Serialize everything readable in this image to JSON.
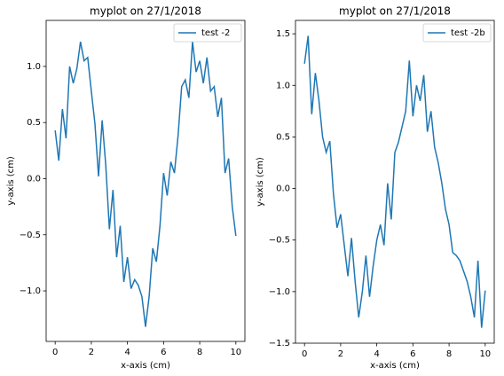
{
  "chart_data": [
    {
      "type": "line",
      "title": "myplot on 27/1/2018",
      "xlabel": "x-axis (cm)",
      "ylabel": "y-axis (cm)",
      "x": [
        0,
        0.2,
        0.4,
        0.6,
        0.8,
        1.0,
        1.2,
        1.4,
        1.6,
        1.8,
        2.0,
        2.2,
        2.4,
        2.6,
        2.8,
        3.0,
        3.2,
        3.4,
        3.6,
        3.8,
        4.0,
        4.2,
        4.4,
        4.6,
        4.8,
        5.0,
        5.2,
        5.4,
        5.6,
        5.8,
        6.0,
        6.2,
        6.4,
        6.6,
        6.8,
        7.0,
        7.2,
        7.4,
        7.6,
        7.8,
        8.0,
        8.2,
        8.4,
        8.6,
        8.8,
        9.0,
        9.2,
        9.4,
        9.6,
        9.8,
        10.0
      ],
      "series": [
        {
          "name": "test -2",
          "color": "#1f77b4",
          "values": [
            0.43,
            0.16,
            0.62,
            0.36,
            1.0,
            0.85,
            0.98,
            1.22,
            1.05,
            1.08,
            0.78,
            0.49,
            0.02,
            0.52,
            0.12,
            -0.45,
            -0.1,
            -0.7,
            -0.42,
            -0.92,
            -0.7,
            -0.98,
            -0.9,
            -0.95,
            -1.05,
            -1.32,
            -1.05,
            -0.62,
            -0.74,
            -0.42,
            0.05,
            -0.15,
            0.15,
            0.05,
            0.38,
            0.82,
            0.88,
            0.72,
            1.22,
            0.95,
            1.05,
            0.85,
            1.08,
            0.78,
            0.82,
            0.55,
            0.72,
            0.05,
            0.18,
            -0.25,
            -0.51
          ]
        }
      ],
      "xlim": [
        -0.5,
        10.5
      ],
      "xticks": [
        0,
        2,
        4,
        6,
        8,
        10
      ],
      "ylim": [
        -1.45,
        1.41
      ],
      "yticks": [
        {
          "value": -1.0,
          "label": "−1.0"
        },
        {
          "value": -0.5,
          "label": "−0.5"
        },
        {
          "value": 0.0,
          "label": "0.0"
        },
        {
          "value": 0.5,
          "label": "0.5"
        },
        {
          "value": 1.0,
          "label": "1.0"
        }
      ],
      "legend": "upper right"
    },
    {
      "type": "line",
      "title": "myplot on 27/1/2018",
      "xlabel": "x-axis (cm)",
      "ylabel": "y-axis (cm)",
      "x": [
        0,
        0.2,
        0.4,
        0.6,
        0.8,
        1.0,
        1.2,
        1.4,
        1.6,
        1.8,
        2.0,
        2.2,
        2.4,
        2.6,
        2.8,
        3.0,
        3.2,
        3.4,
        3.6,
        3.8,
        4.0,
        4.2,
        4.4,
        4.6,
        4.8,
        5.0,
        5.2,
        5.4,
        5.6,
        5.8,
        6.0,
        6.2,
        6.4,
        6.6,
        6.8,
        7.0,
        7.2,
        7.4,
        7.6,
        7.8,
        8.0,
        8.2,
        8.4,
        8.6,
        8.8,
        9.0,
        9.2,
        9.4,
        9.6,
        9.8,
        10.0
      ],
      "series": [
        {
          "name": "test -2b",
          "color": "#1f77b4",
          "values": [
            1.21,
            1.48,
            0.72,
            1.12,
            0.85,
            0.5,
            0.35,
            0.46,
            -0.05,
            -0.38,
            -0.25,
            -0.55,
            -0.85,
            -0.48,
            -0.9,
            -1.25,
            -1.0,
            -0.65,
            -1.05,
            -0.75,
            -0.5,
            -0.35,
            -0.55,
            0.05,
            -0.3,
            0.35,
            0.45,
            0.6,
            0.75,
            1.24,
            0.7,
            1.0,
            0.85,
            1.1,
            0.55,
            0.75,
            0.4,
            0.25,
            0.05,
            -0.2,
            -0.35,
            -0.62,
            -0.65,
            -0.7,
            -0.8,
            -0.9,
            -1.05,
            -1.25,
            -0.7,
            -1.35,
            -0.99
          ]
        }
      ],
      "xlim": [
        -0.5,
        10.5
      ],
      "xticks": [
        0,
        2,
        4,
        6,
        8,
        10
      ],
      "ylim": [
        -1.5,
        1.63
      ],
      "yticks": [
        {
          "value": -1.5,
          "label": "−1.5"
        },
        {
          "value": -1.0,
          "label": "−1.0"
        },
        {
          "value": -0.5,
          "label": "−0.5"
        },
        {
          "value": 0.0,
          "label": "0.0"
        },
        {
          "value": 0.5,
          "label": "0.5"
        },
        {
          "value": 1.0,
          "label": "1.0"
        },
        {
          "value": 1.5,
          "label": "1.5"
        }
      ],
      "legend": "upper right"
    }
  ]
}
